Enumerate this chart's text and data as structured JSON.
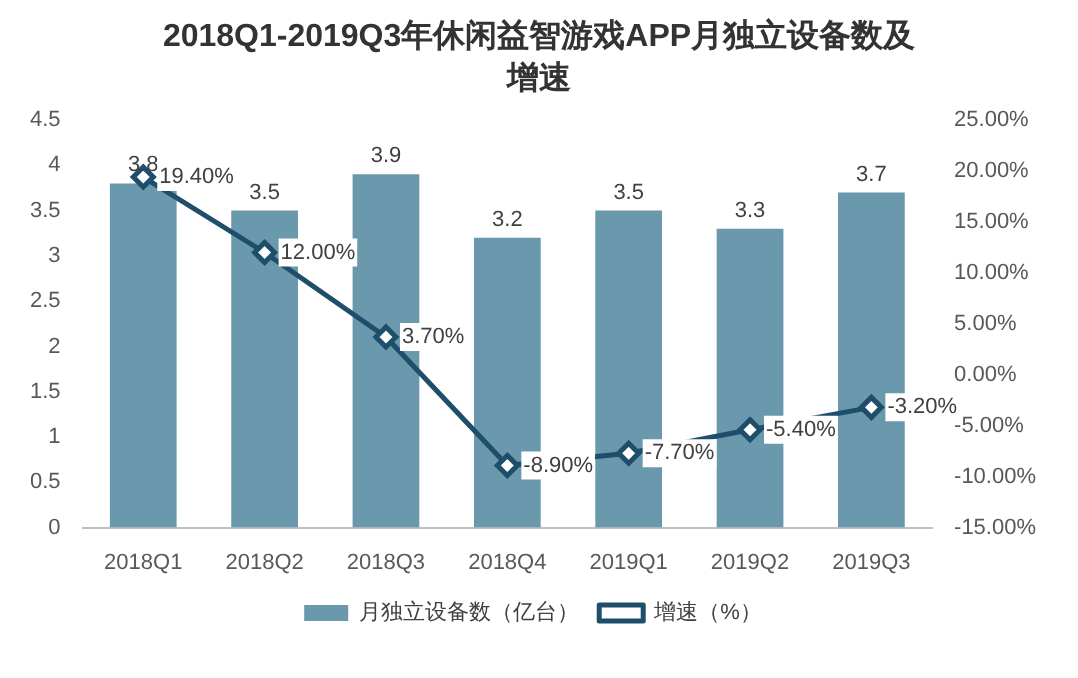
{
  "chart_data": {
    "type": "bar",
    "title": "2018Q1-2019Q3年休闲益智游戏APP月独立设备数及增速",
    "categories": [
      "2018Q1",
      "2018Q2",
      "2018Q3",
      "2018Q4",
      "2019Q1",
      "2019Q2",
      "2019Q3"
    ],
    "series": [
      {
        "name": "月独立设备数（亿台）",
        "color": "#6a98ad",
        "values": [
          3.8,
          3.5,
          3.9,
          3.2,
          3.5,
          3.3,
          3.7
        ],
        "value_labels": [
          "3.8",
          "3.5",
          "3.9",
          "3.2",
          "3.5",
          "3.3",
          "3.7"
        ]
      },
      {
        "name": "增速（%）",
        "type": "line",
        "axis": "y2",
        "color": "#1f4e6b",
        "marker": "diamond",
        "values": [
          19.4,
          12.0,
          3.7,
          -8.9,
          -7.7,
          -5.4,
          -3.2
        ],
        "value_labels": [
          "19.40%",
          "12.00%",
          "3.70%",
          "-8.90%",
          "-7.70%",
          "-5.40%",
          "-3.20%"
        ]
      }
    ],
    "ylim": [
      0,
      4.5
    ],
    "yticks": [
      0,
      0.5,
      1,
      1.5,
      2,
      2.5,
      3,
      3.5,
      4,
      4.5
    ],
    "y2lim": [
      -15,
      25
    ],
    "y2ticks": [
      {
        "value": -15,
        "label": "-15.00%"
      },
      {
        "value": -10,
        "label": "-10.00%"
      },
      {
        "value": -5,
        "label": "-5.00%"
      },
      {
        "value": 0,
        "label": "0.00%"
      },
      {
        "value": 5,
        "label": "5.00%"
      },
      {
        "value": 10,
        "label": "10.00%"
      },
      {
        "value": 15,
        "label": "15.00%"
      },
      {
        "value": 20,
        "label": "20.00%"
      },
      {
        "value": 25,
        "label": "25.00%"
      }
    ],
    "grid": false,
    "legend": "bottom"
  }
}
